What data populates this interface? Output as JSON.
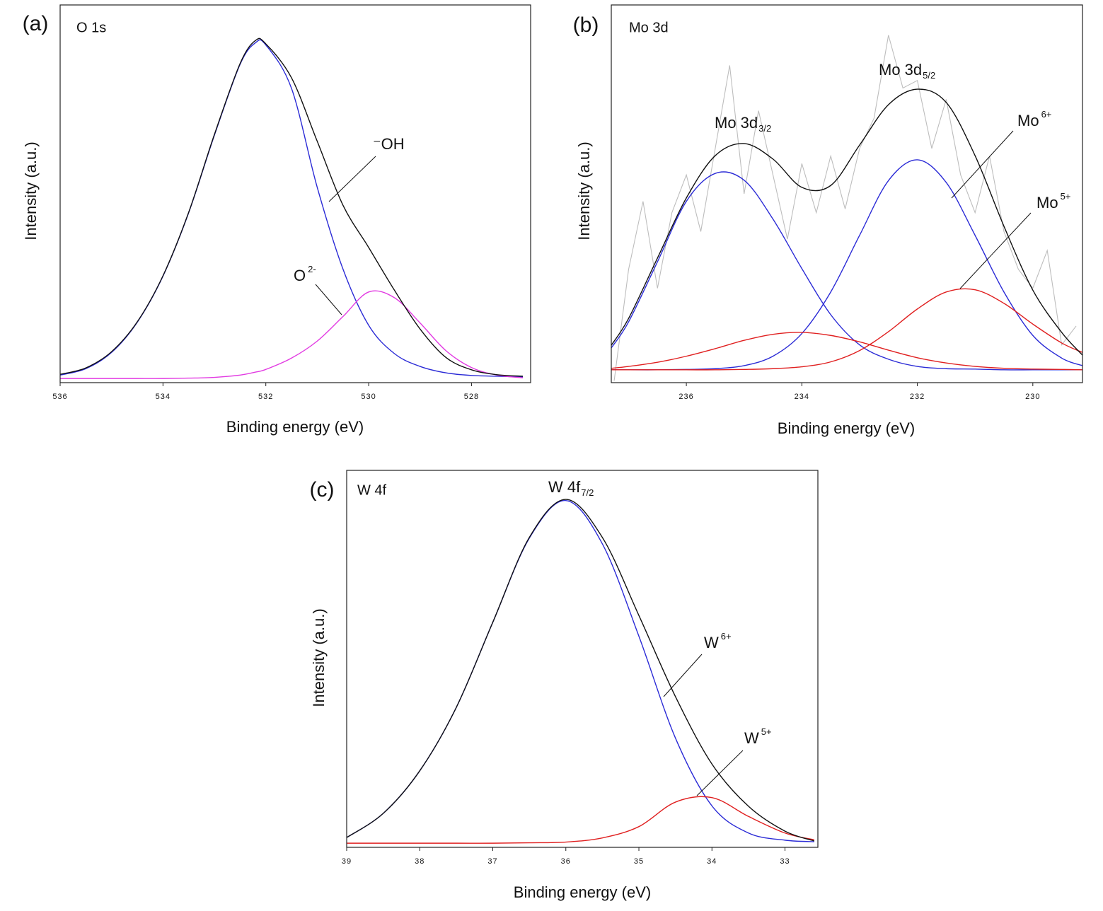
{
  "chart_data": [
    {
      "type": "line",
      "label": "(a)",
      "title": "O 1s",
      "x_label": "Binding energy (eV)",
      "y_label": "Intensity (a.u.)",
      "xlim": [
        536,
        526.85
      ],
      "xticks": [
        536,
        534,
        532,
        530,
        528
      ],
      "ylim": [
        0,
        100
      ],
      "x": [
        536,
        535.5,
        535,
        534.5,
        534,
        533.5,
        533,
        532.5,
        532.2,
        532,
        531.5,
        531,
        530.5,
        530,
        529.5,
        529,
        528.5,
        528,
        527.5,
        527
      ],
      "series": [
        {
          "color": "#2b2bd6",
          "smooth": true,
          "values": [
            2.0,
            3.7,
            8.0,
            16.0,
            28.2,
            45.0,
            65.5,
            84.3,
            90.0,
            89.4,
            77.9,
            51.7,
            30.1,
            15.2,
            7.7,
            4.3,
            2.6,
            1.9,
            1.7,
            1.5
          ]
        },
        {
          "color": "#e23be2",
          "smooth": true,
          "values": [
            1.1,
            1.1,
            1.1,
            1.1,
            1.1,
            1.2,
            1.4,
            2.0,
            2.8,
            3.5,
            6.5,
            11.0,
            17.5,
            24.0,
            22.5,
            15.8,
            8.5,
            4.0,
            2.0,
            1.3
          ]
        },
        {
          "color": "#111111",
          "smooth": true,
          "values": [
            2.2,
            3.9,
            8.2,
            16.1,
            28.3,
            45.1,
            65.7,
            84.5,
            90.6,
            89.7,
            80.7,
            63.9,
            47.0,
            35.8,
            24.5,
            14.2,
            6.7,
            3.4,
            2.1,
            1.7
          ]
        }
      ],
      "annotations": [
        {
          "text": "⁻OH"
        },
        {
          "text": "O",
          "sup": "2-"
        }
      ]
    },
    {
      "type": "line",
      "label": "(b)",
      "title": "Mo 3d",
      "x_label": "Binding energy (eV)",
      "y_label": "Intensity (a.u.)",
      "xlim": [
        237.3,
        229.14
      ],
      "xticks": [
        236,
        234,
        232,
        230
      ],
      "ylim": [
        0,
        100
      ],
      "x": [
        237.3,
        237,
        236.5,
        236,
        235.5,
        235,
        234.5,
        234,
        233.5,
        233,
        232.5,
        232,
        231.5,
        231,
        230.5,
        230,
        229.5,
        229.14
      ],
      "series": [
        {
          "color": "#bdbdbd",
          "smooth": false,
          "x": [
            237.25,
            237.0,
            236.75,
            236.5,
            236.25,
            236.0,
            235.75,
            235.5,
            235.25,
            235.0,
            234.75,
            234.5,
            234.25,
            234.0,
            233.75,
            233.5,
            233.25,
            233.0,
            232.75,
            232.5,
            232.25,
            232.0,
            231.75,
            231.5,
            231.25,
            231.0,
            230.75,
            230.5,
            230.25,
            230.0,
            229.75,
            229.5,
            229.25
          ],
          "values": [
            0.5,
            30,
            48,
            25,
            45,
            55,
            40,
            62,
            84,
            50,
            72,
            55,
            38,
            58,
            45,
            60,
            46,
            62,
            70,
            92,
            78,
            80,
            62,
            75,
            55,
            45,
            60,
            40,
            30,
            25,
            35,
            10,
            15
          ]
        },
        {
          "color": "#2b2bd6",
          "smooth": true,
          "values": [
            9.2,
            16.1,
            32.0,
            48.0,
            55.4,
            53.6,
            43.3,
            30.2,
            18.0,
            10.0,
            6.2,
            4.3,
            3.7,
            3.6,
            3.4,
            3.4,
            3.4,
            3.4
          ]
        },
        {
          "color": "#2b2bd6",
          "smooth": true,
          "values": [
            3.4,
            3.4,
            3.4,
            3.5,
            3.7,
            4.5,
            7.0,
            13.0,
            24.0,
            39.0,
            53.5,
            59.0,
            53.0,
            39.0,
            24.0,
            12.5,
            6.5,
            4.5
          ]
        },
        {
          "color": "#e02020",
          "smooth": true,
          "values": [
            3.8,
            4.3,
            5.4,
            7.0,
            9.0,
            11.2,
            12.8,
            13.3,
            12.5,
            10.8,
            8.6,
            6.6,
            5.2,
            4.3,
            3.8,
            3.6,
            3.5,
            3.4
          ]
        },
        {
          "color": "#e02020",
          "smooth": true,
          "values": [
            3.4,
            3.4,
            3.4,
            3.4,
            3.4,
            3.5,
            3.7,
            4.2,
            5.5,
            8.5,
            13.5,
            19.5,
            24.0,
            24.6,
            21.0,
            15.5,
            10.5,
            8.0
          ]
        },
        {
          "color": "#111111",
          "smooth": true,
          "values": [
            9.9,
            17.0,
            33.0,
            48.9,
            60.1,
            63.3,
            59.2,
            51.7,
            52.2,
            62.9,
            73.6,
            77.7,
            74.2,
            60.1,
            41.4,
            24.5,
            13.3,
            7.3
          ]
        }
      ],
      "annotations": [
        {
          "text": "Mo 3d",
          "sub": "3/2"
        },
        {
          "text": "Mo 3d",
          "sub": "5/2"
        },
        {
          "text": "Mo",
          "sup": "6+"
        },
        {
          "text": "Mo",
          "sup": "5+"
        }
      ]
    },
    {
      "type": "line",
      "label": "(c)",
      "title": "W 4f",
      "x_label": "Binding energy (eV)",
      "y_label": "Intensity (a.u.)",
      "xlim": [
        39,
        32.55
      ],
      "xticks": [
        39,
        38,
        37,
        36,
        35,
        34,
        33
      ],
      "ylim": [
        0,
        100
      ],
      "x": [
        39,
        38.5,
        38,
        37.5,
        37,
        36.5,
        36,
        35.5,
        35,
        34.5,
        34,
        33.5,
        33,
        32.6
      ],
      "series": [
        {
          "color": "#2b2bd6",
          "smooth": true,
          "values": [
            2.6,
            9.0,
            20.3,
            37.1,
            59.7,
            82.0,
            92.0,
            80.5,
            56.0,
            29.0,
            11.0,
            3.8,
            1.9,
            1.5
          ]
        },
        {
          "color": "#e02020",
          "smooth": true,
          "values": [
            1.1,
            1.1,
            1.1,
            1.1,
            1.1,
            1.2,
            1.4,
            2.5,
            5.5,
            12.0,
            13.2,
            8.2,
            3.8,
            2.0
          ]
        },
        {
          "color": "#111111",
          "smooth": true,
          "values": [
            2.6,
            9.0,
            20.3,
            37.1,
            59.7,
            82.2,
            92.3,
            82.2,
            61.5,
            40.0,
            22.1,
            10.9,
            4.3,
            1.7
          ]
        }
      ],
      "annotations": [
        {
          "text": "W 4f",
          "sub": "7/2"
        },
        {
          "text": "W",
          "sup": "6+"
        },
        {
          "text": "W",
          "sup": "5+"
        }
      ]
    }
  ]
}
